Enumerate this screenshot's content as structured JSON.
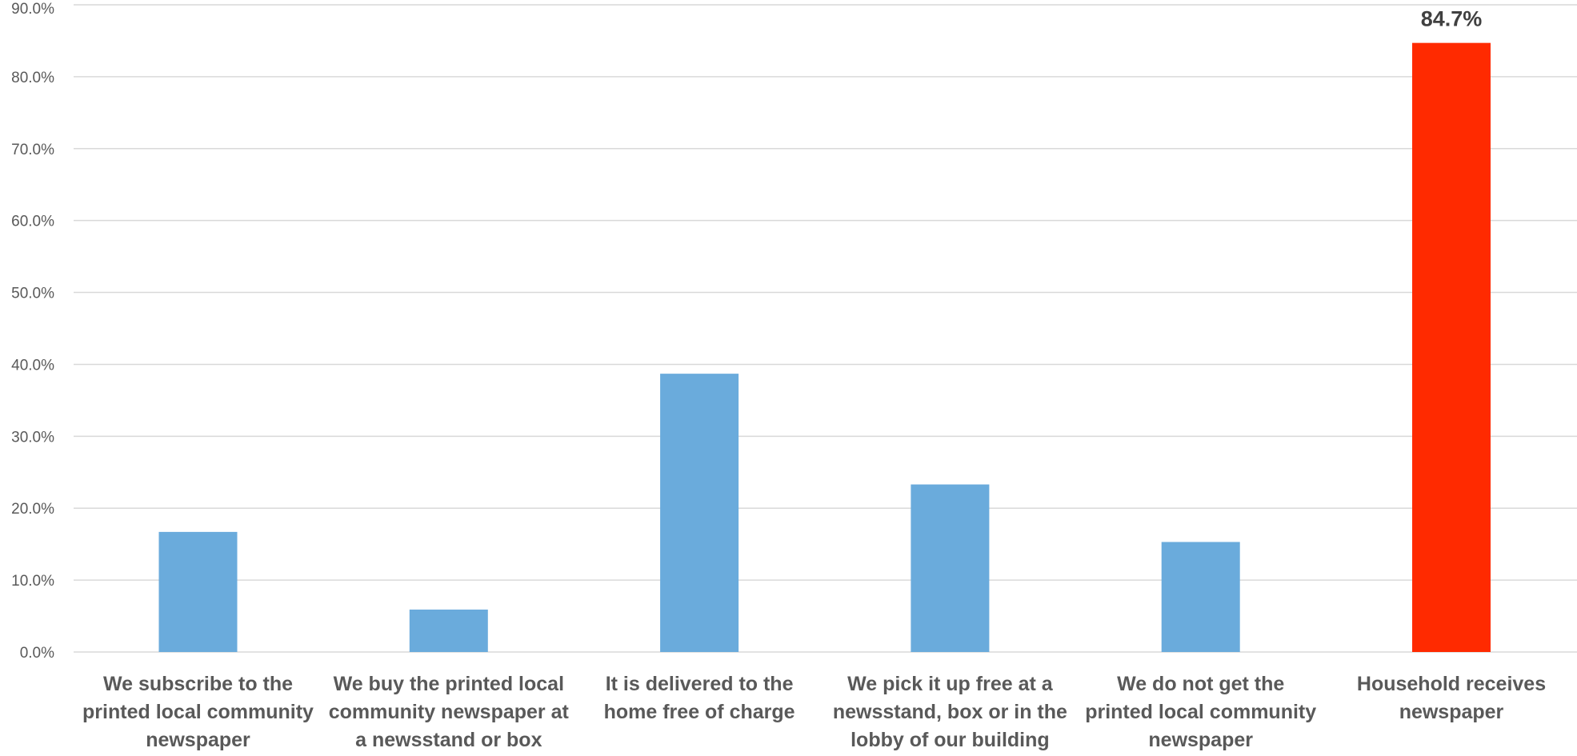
{
  "chart_data": {
    "type": "bar",
    "categories": [
      [
        "We subscribe to the",
        "printed local community",
        "newspaper"
      ],
      [
        "We buy the printed local",
        "community newspaper at",
        "a newsstand or box"
      ],
      [
        "It is delivered to the",
        "home free of charge"
      ],
      [
        "We pick it up free at a",
        "newsstand, box or in the",
        "lobby of our building"
      ],
      [
        "We do not get the",
        "printed local community",
        "newspaper"
      ],
      [
        "Household receives",
        "newspaper"
      ]
    ],
    "values": [
      16.7,
      5.9,
      38.7,
      23.3,
      15.3,
      84.7
    ],
    "bar_colors": [
      "#6aabdc",
      "#6aabdc",
      "#6aabdc",
      "#6aabdc",
      "#6aabdc",
      "#ff2a00"
    ],
    "data_labels": [
      "",
      "",
      "",
      "",
      "",
      "84.7%"
    ],
    "ylim": [
      0,
      90
    ],
    "yticks": [
      "0.0%",
      "10.0%",
      "20.0%",
      "30.0%",
      "40.0%",
      "50.0%",
      "60.0%",
      "70.0%",
      "80.0%",
      "90.0%"
    ],
    "title": "",
    "xlabel": "",
    "ylabel": "",
    "grid": true,
    "legend": "none"
  }
}
